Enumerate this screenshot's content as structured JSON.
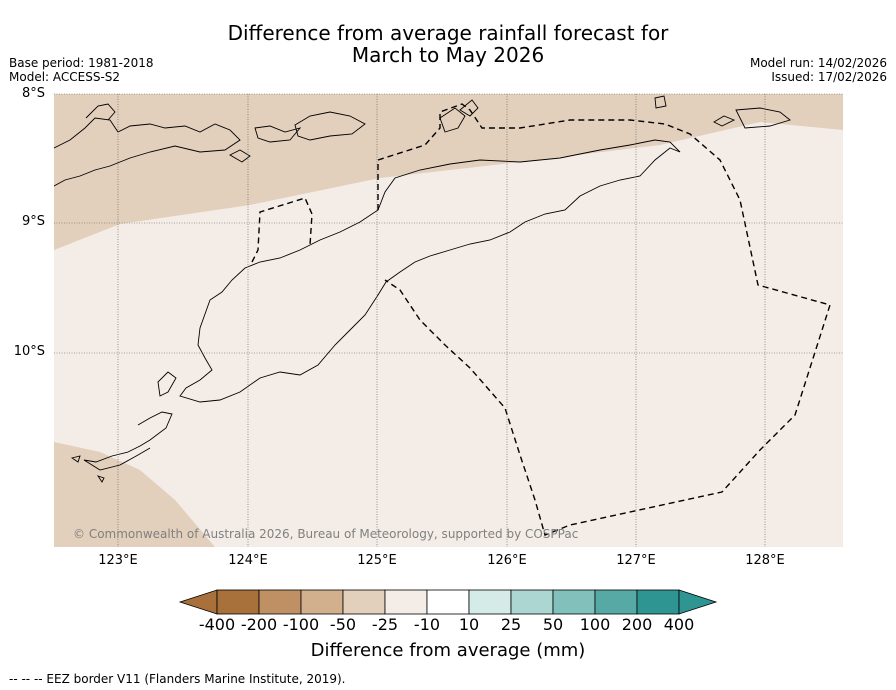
{
  "title_line1": "Difference from average rainfall forecast for",
  "title_line2": "March to May 2026",
  "base_period": "Base period: 1981-2018",
  "model": "Model: ACCESS-S2",
  "model_run": "Model run: 14/02/2026",
  "issued": "Issued: 17/02/2026",
  "lat_labels": [
    "8°S",
    "9°S",
    "10°S"
  ],
  "lon_labels": [
    "123°E",
    "124°E",
    "125°E",
    "126°E",
    "127°E",
    "128°E"
  ],
  "copyright": "© Commonwealth of Australia 2026, Bureau of Meteorology, supported by COSPPac",
  "colorbar": {
    "title": "Difference from average (mm)",
    "tick_labels": [
      "-400",
      "-200",
      "-100",
      "-50",
      "-25",
      "-10",
      "10",
      "25",
      "50",
      "100",
      "200",
      "400"
    ],
    "colors": [
      "#a8703a",
      "#be9064",
      "#d2b08e",
      "#e2cfbc",
      "#f4ede7",
      "#ffffff",
      "#d5ebe8",
      "#acd6d2",
      "#82c0bc",
      "#57a9a6",
      "#2e9592"
    ],
    "under_color": "#8c5a2b",
    "over_color": "#1f7a78"
  },
  "footnote": "--  --  -- EEZ border V11 (Flanders Marine Institute, 2019).",
  "colors": {
    "band_light_brown": "#e2cfbc",
    "band_pale": "#f4ede7"
  }
}
